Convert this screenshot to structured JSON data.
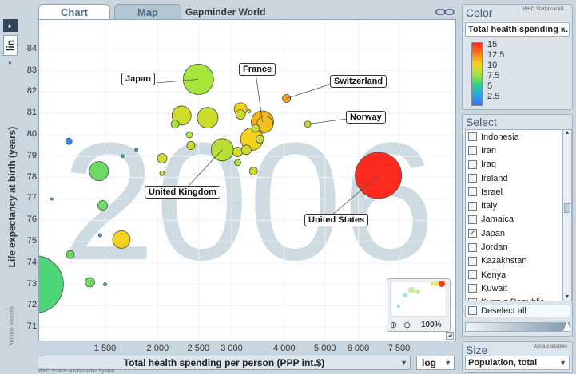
{
  "tabs": {
    "chart": "Chart",
    "map": "Map"
  },
  "title": "Gapminder World",
  "year": "2006",
  "y_scale": "lin",
  "y_axis_label": "Life expectancy at birth (years)",
  "y_source": "Various sources",
  "x_axis_label": "Total health spending per person (PPP int.$)",
  "x_scale": "log",
  "x_source": "WHO Statistical Information System",
  "color_panel": {
    "title": "Color",
    "source": "WHO Statistical Inf...",
    "indicator": "Total health spending ...",
    "legend": [
      "15",
      "12.5",
      "10",
      "7.5",
      "5",
      "2.5"
    ]
  },
  "select_panel": {
    "title": "Select",
    "countries": [
      {
        "name": "Indonesia",
        "checked": false
      },
      {
        "name": "Iran",
        "checked": false
      },
      {
        "name": "Iraq",
        "checked": false
      },
      {
        "name": "Ireland",
        "checked": false
      },
      {
        "name": "Israel",
        "checked": false
      },
      {
        "name": "Italy",
        "checked": false
      },
      {
        "name": "Jamaica",
        "checked": false
      },
      {
        "name": "Japan",
        "checked": true
      },
      {
        "name": "Jordan",
        "checked": false
      },
      {
        "name": "Kazakhstan",
        "checked": false
      },
      {
        "name": "Kenya",
        "checked": false
      },
      {
        "name": "Kuwait",
        "checked": false
      },
      {
        "name": "Kyrgyz Republic",
        "checked": false
      }
    ],
    "deselect": "Deselect all"
  },
  "size_panel": {
    "title": "Size",
    "source": "Various sources",
    "indicator": "Population, total"
  },
  "minimap": {
    "zoom": "100%"
  },
  "colors": {
    "plot_bg": "#ffffff",
    "year_watermark": "#cfdbe3",
    "ui_blue": "#4a6a86"
  },
  "chart_data": {
    "type": "scatter",
    "x_scale": "log",
    "xlim": [
      1050,
      10300
    ],
    "ylim": [
      70.6,
      85.3
    ],
    "x_ticks": [
      1500,
      2000,
      2500,
      3000,
      4000,
      5000,
      6000,
      7500
    ],
    "x_tick_labels": [
      "1 500",
      "2 000",
      "2 500",
      "3 000",
      "4 000",
      "5 000",
      "6 000",
      "7 500"
    ],
    "y_ticks": [
      71,
      72,
      73,
      74,
      75,
      76,
      77,
      78,
      79,
      80,
      81,
      82,
      83,
      84
    ],
    "points": [
      {
        "name": "United States",
        "x": 6700,
        "y": 78.1,
        "r": 29,
        "c": 16
      },
      {
        "name": "Japan",
        "x": 2500,
        "y": 82.6,
        "r": 19,
        "c": 8
      },
      {
        "name": "France",
        "x": 3550,
        "y": 80.6,
        "r": 14,
        "c": 11
      },
      {
        "name": "United Kingdom",
        "x": 2850,
        "y": 79.3,
        "r": 14,
        "c": 8.4
      },
      {
        "name": "Switzerland",
        "x": 4050,
        "y": 81.7,
        "r": 5,
        "c": 11.4
      },
      {
        "name": "Norway",
        "x": 4550,
        "y": 80.5,
        "r": 4,
        "c": 9
      },
      {
        "name": "",
        "x": 2280,
        "y": 80.9,
        "r": 12,
        "c": 9
      },
      {
        "name": "",
        "x": 2630,
        "y": 80.8,
        "r": 13,
        "c": 9
      },
      {
        "name": "",
        "x": 3350,
        "y": 79.8,
        "r": 14,
        "c": 10
      },
      {
        "name": "",
        "x": 3600,
        "y": 80.5,
        "r": 10,
        "c": 10.5
      },
      {
        "name": "",
        "x": 3150,
        "y": 81.2,
        "r": 8,
        "c": 10
      },
      {
        "name": "",
        "x": 3150,
        "y": 80.95,
        "r": 6,
        "c": 9
      },
      {
        "name": "",
        "x": 3300,
        "y": 81.1,
        "r": 2,
        "c": 9
      },
      {
        "name": "",
        "x": 3100,
        "y": 79.2,
        "r": 6,
        "c": 9
      },
      {
        "name": "",
        "x": 3250,
        "y": 79.3,
        "r": 6,
        "c": 9
      },
      {
        "name": "",
        "x": 3500,
        "y": 79.8,
        "r": 5,
        "c": 9
      },
      {
        "name": "",
        "x": 3420,
        "y": 80.3,
        "r": 5,
        "c": 9
      },
      {
        "name": "",
        "x": 3380,
        "y": 78.3,
        "r": 5,
        "c": 9
      },
      {
        "name": "",
        "x": 3100,
        "y": 78.7,
        "r": 4,
        "c": 8
      },
      {
        "name": "",
        "x": 2200,
        "y": 80.5,
        "r": 5,
        "c": 8
      },
      {
        "name": "",
        "x": 2380,
        "y": 80.0,
        "r": 4,
        "c": 8
      },
      {
        "name": "",
        "x": 2400,
        "y": 79.5,
        "r": 5,
        "c": 9
      },
      {
        "name": "",
        "x": 2050,
        "y": 78.9,
        "r": 6,
        "c": 9
      },
      {
        "name": "",
        "x": 2050,
        "y": 78.2,
        "r": 3,
        "c": 9
      },
      {
        "name": "",
        "x": 1450,
        "y": 78.3,
        "r": 12,
        "c": 7
      },
      {
        "name": "",
        "x": 1480,
        "y": 76.7,
        "r": 6,
        "c": 7
      },
      {
        "name": "",
        "x": 1640,
        "y": 75.1,
        "r": 11,
        "c": 10
      },
      {
        "name": "",
        "x": 1240,
        "y": 74.4,
        "r": 5,
        "c": 7
      },
      {
        "name": "",
        "x": 1380,
        "y": 73.1,
        "r": 6,
        "c": 7
      },
      {
        "name": "",
        "x": 1500,
        "y": 73.0,
        "r": 2,
        "c": 6
      },
      {
        "name": "",
        "x": 1460,
        "y": 75.3,
        "r": 2,
        "c": 4
      },
      {
        "name": "",
        "x": 1650,
        "y": 79.0,
        "r": 2,
        "c": 6
      },
      {
        "name": "",
        "x": 1780,
        "y": 79.3,
        "r": 2,
        "c": 4
      },
      {
        "name": "",
        "x": 1230,
        "y": 79.7,
        "r": 4,
        "c": 3
      },
      {
        "name": "",
        "x": 1120,
        "y": 77.0,
        "r": 1.5,
        "c": 5
      },
      {
        "name": "",
        "x": 1020,
        "y": 73.0,
        "r": 36,
        "c": 6.5
      }
    ]
  }
}
